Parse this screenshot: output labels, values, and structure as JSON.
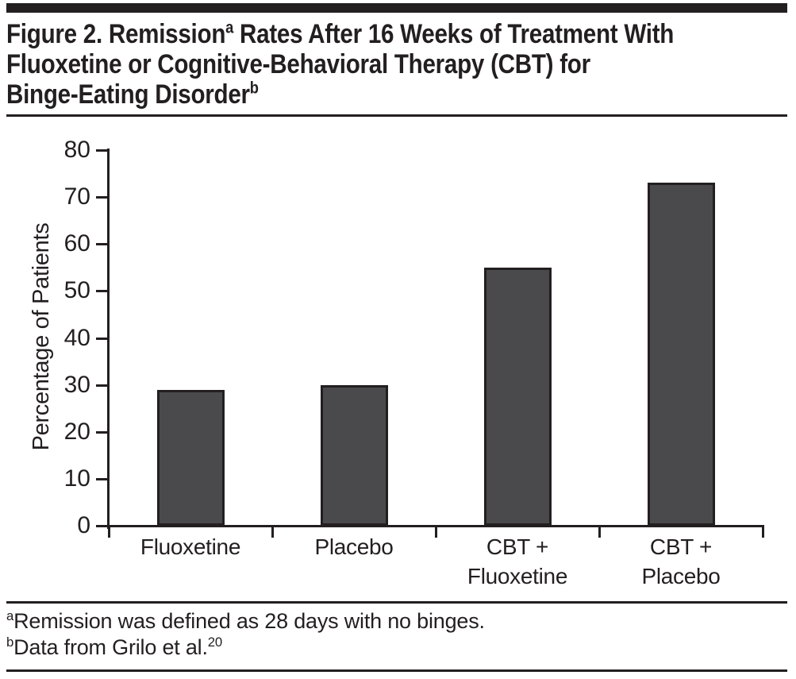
{
  "figure": {
    "title_lines": [
      [
        {
          "t": "Figure 2. Remission"
        },
        {
          "t": "a",
          "sup": true
        },
        {
          "t": " Rates After 16 Weeks of Treatment With"
        }
      ],
      [
        {
          "t": "Fluoxetine or Cognitive-Behavioral Therapy (CBT) for"
        }
      ],
      [
        {
          "t": "Binge-Eating Disorder"
        },
        {
          "t": "b",
          "sup": true
        }
      ]
    ],
    "footnote_lines": [
      [
        {
          "t": "a",
          "sup": true
        },
        {
          "t": "Remission was defined as 28 days with no binges."
        }
      ],
      [
        {
          "t": "b",
          "sup": true
        },
        {
          "t": "Data from Grilo et al."
        },
        {
          "t": "20",
          "sup": true
        }
      ]
    ]
  },
  "chart_data": {
    "type": "bar",
    "title": "Figure 2. Remission Rates After 16 Weeks of Treatment With Fluoxetine or Cognitive-Behavioral Therapy (CBT) for Binge-Eating Disorder",
    "categories": [
      "Fluoxetine",
      "Placebo",
      "CBT + Fluoxetine",
      "CBT + Placebo"
    ],
    "category_label_lines": [
      [
        "Fluoxetine"
      ],
      [
        "Placebo"
      ],
      [
        "CBT +",
        "Fluoxetine"
      ],
      [
        "CBT +",
        "Placebo"
      ]
    ],
    "values": [
      29,
      30,
      55,
      73
    ],
    "xlabel": "",
    "ylabel": "Percentage of Patients",
    "ylim": [
      0,
      80
    ],
    "yticks": [
      0,
      10,
      20,
      30,
      40,
      50,
      60,
      70,
      80
    ],
    "grid": false,
    "legend": false,
    "bar_fill": "#4a4a4c",
    "bar_border": "#231f20",
    "axis_color": "#231f20"
  },
  "colors": {
    "ink": "#231f20",
    "background": "#ffffff"
  }
}
